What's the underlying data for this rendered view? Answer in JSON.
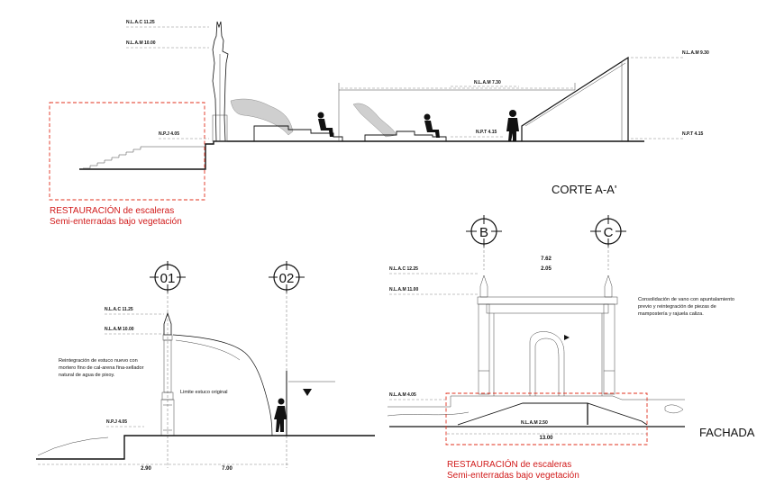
{
  "corte": {
    "title": "CORTE A-A'",
    "levels": {
      "nlac": "N.L.A.C 11.25",
      "nlam": "N.L.A.M 10.00",
      "npj": "N.P.J 4.05",
      "nlam_mid": "N.L.A.M 7.30",
      "npt_mid": "N.P.T 4.15",
      "nlam_right": "N.L.A.M 9.30",
      "npt_right": "N.P.T 4.15"
    },
    "note_line1": "RESTAURACIÓN de escaleras",
    "note_line2": "Semi-enterradas bajo vegetación"
  },
  "detail": {
    "axis_01": "01",
    "axis_02": "02",
    "levels": {
      "nlac": "N.L.A.C 11.25",
      "nlam": "N.L.A.M 10.00",
      "npj": "N.P.J 4.05"
    },
    "note_lines": [
      "Reintegración de estuco nuevo con",
      "mortero fino de cal-arena fina-sellador",
      "natural de agua de pixoy."
    ],
    "limit_label": "Limite estuco original",
    "dim_1": "2.90",
    "dim_2": "7.00"
  },
  "fachada": {
    "title": "FACHADA",
    "axis_b": "B",
    "axis_c": "C",
    "dim_top": "7.62",
    "dim_top2": "2.05",
    "dim_stair": "N.L.A.M 2.50",
    "dim_bottom": "13.00",
    "levels": {
      "nlac": "N.L.A.C 12.25",
      "nlam": "N.L.A.M 11.00",
      "nlam_low": "N.L.A.M 4.05"
    },
    "note_lines": [
      "Consolidación de vano con apuntalamiento",
      "previo y reintegración de piezas de",
      "mampostería y rajuela caliza."
    ],
    "note_line1": "RESTAURACIÓN de escaleras",
    "note_line2": "Semi-enterradas bajo vegetación"
  },
  "colors": {
    "accent_red": "#d11a1a",
    "ink": "#111111"
  }
}
